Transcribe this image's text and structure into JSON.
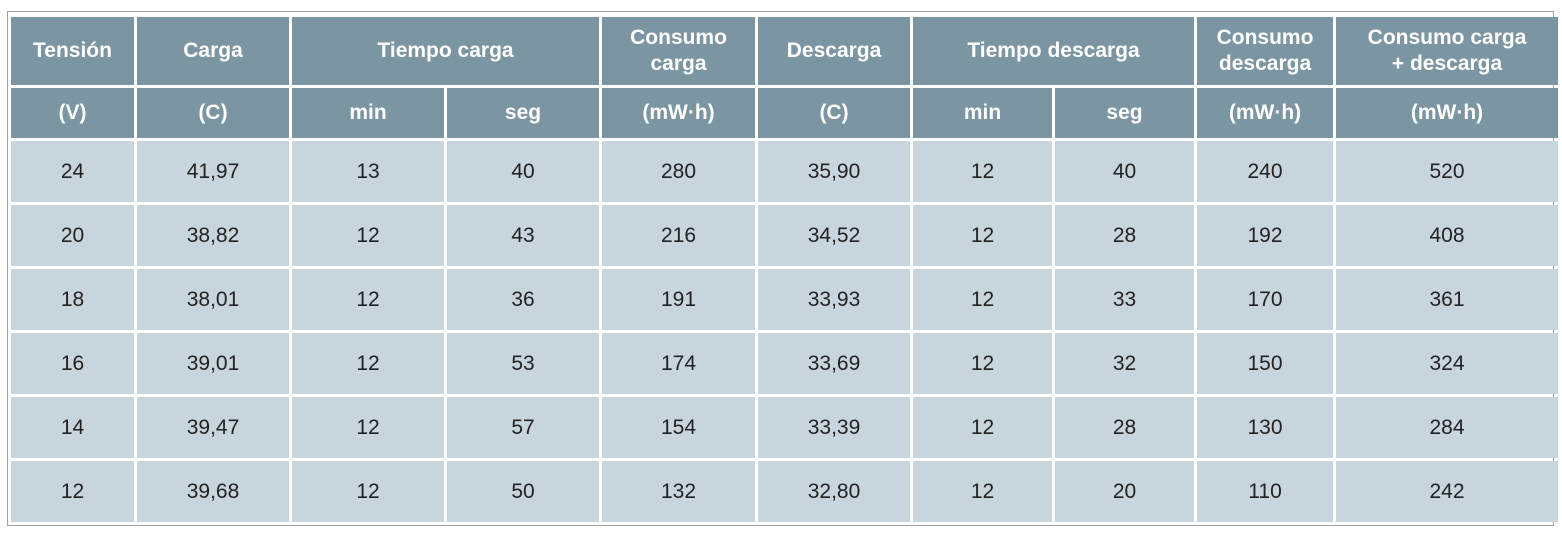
{
  "header": {
    "row1": [
      "Tensión",
      "Carga",
      "Tiempo carga",
      "Consumo carga",
      "Descarga",
      "Tiempo descarga",
      "Consumo descarga",
      "Consumo carga + descarga"
    ],
    "row2": [
      "(V)",
      "(C)",
      "min",
      "seg",
      "(mW·h)",
      "(C)",
      "min",
      "seg",
      "(mW·h)",
      "(mW·h)"
    ]
  },
  "table": {
    "rows": [
      [
        "24",
        "41,97",
        "13",
        "40",
        "280",
        "35,90",
        "12",
        "40",
        "240",
        "520"
      ],
      [
        "20",
        "38,82",
        "12",
        "43",
        "216",
        "34,52",
        "12",
        "28",
        "192",
        "408"
      ],
      [
        "18",
        "38,01",
        "12",
        "36",
        "191",
        "33,93",
        "12",
        "33",
        "170",
        "361"
      ],
      [
        "16",
        "39,01",
        "12",
        "53",
        "174",
        "33,69",
        "12",
        "32",
        "150",
        "324"
      ],
      [
        "14",
        "39,47",
        "12",
        "57",
        "154",
        "33,39",
        "12",
        "28",
        "130",
        "284"
      ],
      [
        "12",
        "39,68",
        "12",
        "50",
        "132",
        "32,80",
        "12",
        "20",
        "110",
        "242"
      ]
    ]
  }
}
